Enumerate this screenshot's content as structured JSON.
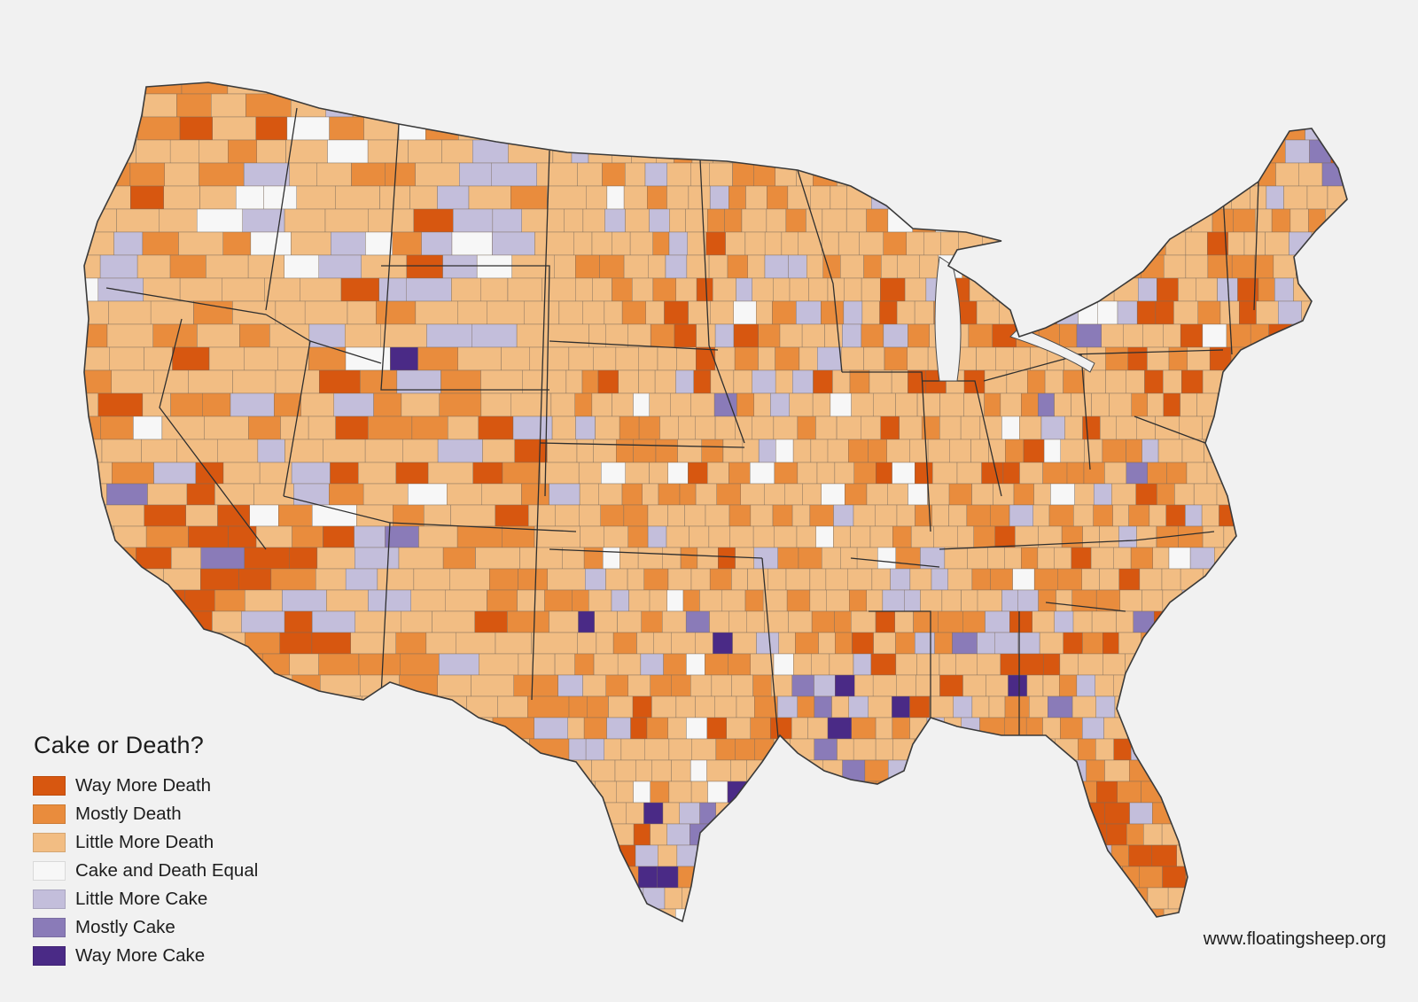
{
  "map": {
    "title": "Cake or Death?",
    "website": "www.floatingsheep.org",
    "region": "contiguous-united-states",
    "unit": "county",
    "colors": {
      "background": "#f1f1f1",
      "boundary": "#4a4a4a"
    },
    "legend": [
      {
        "label": "Way More Death",
        "color": "#d75710"
      },
      {
        "label": "Mostly Death",
        "color": "#e98c3d"
      },
      {
        "label": "Little More Death",
        "color": "#f2bd83"
      },
      {
        "label": "Cake and Death Equal",
        "color": "#f7f7f7"
      },
      {
        "label": "Little More Cake",
        "color": "#c3bedb"
      },
      {
        "label": "Mostly Cake",
        "color": "#8a7bb8"
      },
      {
        "label": "Way More Cake",
        "color": "#4a2a86"
      }
    ]
  }
}
